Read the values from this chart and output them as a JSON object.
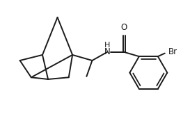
{
  "background_color": "#ffffff",
  "line_color": "#1a1a1a",
  "line_width": 1.4,
  "label_fontsize": 8.5,
  "figsize": [
    2.73,
    1.74
  ],
  "dpi": 100,
  "xlim": [
    0,
    10
  ],
  "ylim": [
    0,
    6.4
  ]
}
